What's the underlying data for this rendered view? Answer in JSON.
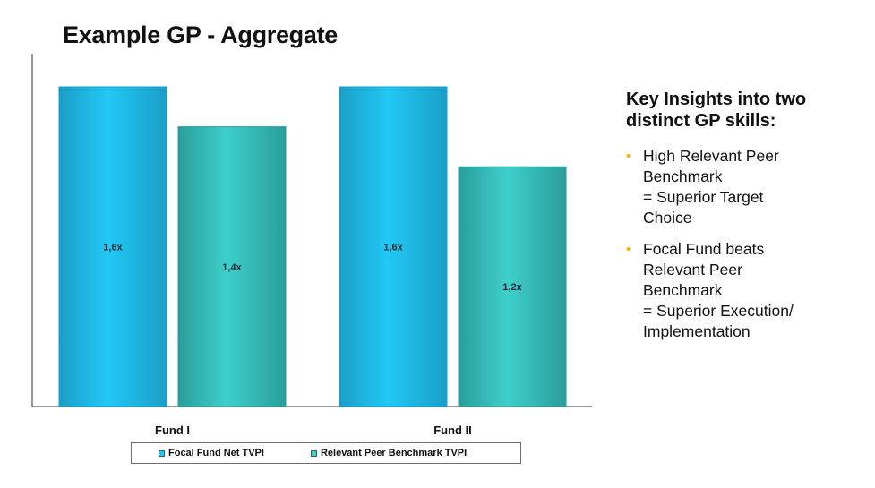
{
  "title": "Example GP - Aggregate",
  "chart_data": {
    "type": "bar",
    "categories": [
      "Fund I",
      "Fund II"
    ],
    "series": [
      {
        "name": "Focal Fund Net TVPI",
        "values": [
          1.6,
          1.6
        ],
        "labels": [
          "1,6x",
          "1,6x"
        ],
        "color": "#22C8F5"
      },
      {
        "name": "Relevant Peer Benchmark TVPI",
        "values": [
          1.4,
          1.2
        ],
        "labels": [
          "1,4x",
          "1,2x"
        ],
        "color": "#3ECFCB"
      }
    ],
    "xlabel": "",
    "ylabel": "",
    "ylim": [
      0,
      1.8
    ],
    "grid": false,
    "legend_position": "bottom"
  },
  "insights": {
    "heading_lines": [
      "Key Insights into two",
      "distinct GP skills:"
    ],
    "bullets": [
      {
        "lines": [
          "High Relevant Peer",
          "Benchmark",
          "= Superior Target",
          "Choice"
        ]
      },
      {
        "lines": [
          "Focal Fund beats",
          "Relevant Peer",
          "Benchmark",
          "= Superior Execution/",
          "Implementation"
        ]
      }
    ],
    "bullet_color": "#F4B400"
  }
}
